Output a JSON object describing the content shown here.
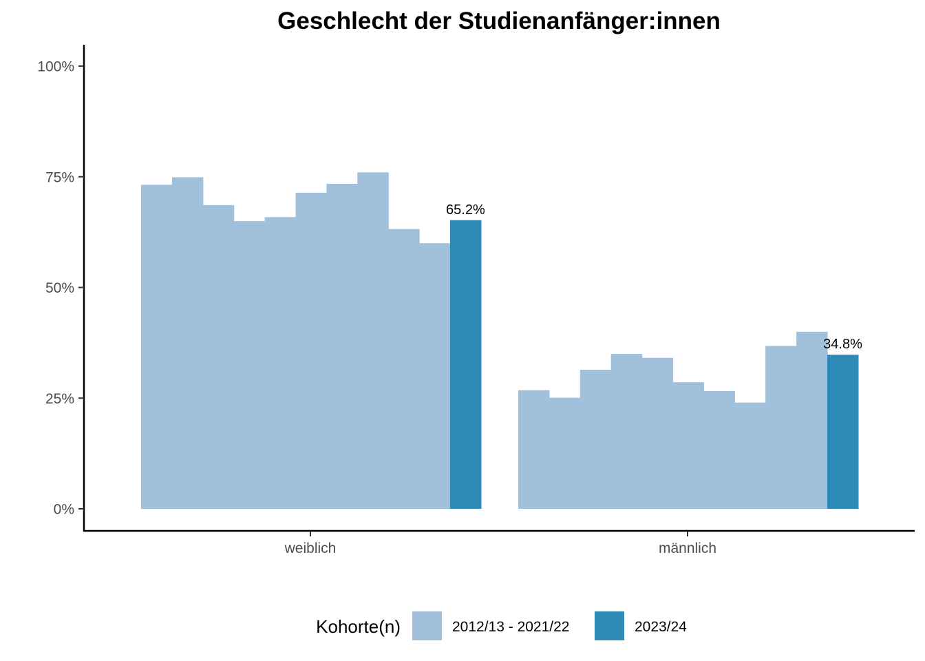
{
  "chart_data": {
    "type": "bar",
    "title": "Geschlecht der Studienanfänger:innen",
    "xlabel": "",
    "ylabel": "",
    "categories": [
      "weiblich",
      "männlich"
    ],
    "ylim": [
      0,
      1.05
    ],
    "y_ticks": [
      {
        "value": 0,
        "label": "0%"
      },
      {
        "value": 0.25,
        "label": "25%"
      },
      {
        "value": 0.5,
        "label": "50%"
      },
      {
        "value": 0.75,
        "label": "75%"
      },
      {
        "value": 1.0,
        "label": "100%"
      }
    ],
    "series": [
      {
        "name": "2012/13 - 2021/22",
        "color": "#a0c0dc",
        "values": [
          [
            0.732,
            0.749,
            0.686,
            0.65,
            0.659,
            0.714,
            0.734,
            0.76,
            0.632,
            0.6
          ],
          [
            0.268,
            0.251,
            0.314,
            0.35,
            0.341,
            0.286,
            0.266,
            0.24,
            0.368,
            0.4
          ]
        ]
      },
      {
        "name": "2023/24",
        "color": "#2e8bb7",
        "values": [
          [
            0.652
          ],
          [
            0.348
          ]
        ],
        "data_labels": [
          "65.2%",
          "34.8%"
        ]
      }
    ],
    "legend": {
      "title": "Kohorte(n)",
      "position": "bottom"
    },
    "grid": false
  }
}
